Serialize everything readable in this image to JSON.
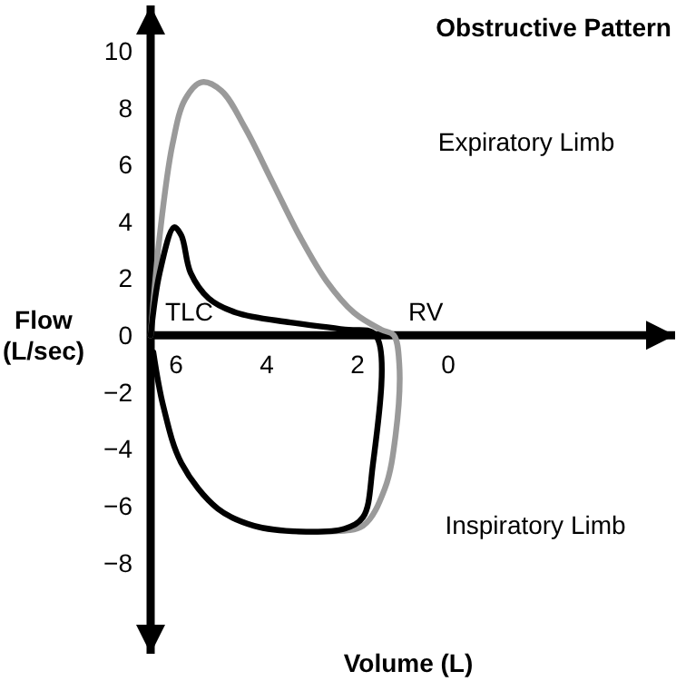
{
  "chart_data": {
    "type": "line",
    "title": "Obstructive Pattern",
    "xlabel": "Volume (L)",
    "ylabel": "Flow (L/sec)",
    "xlim": [
      6.56,
      -5
    ],
    "ylim": [
      -11.2,
      11.6
    ],
    "xticks": [
      6,
      4,
      2,
      0
    ],
    "yticks": [
      -8,
      -6,
      -4,
      -2,
      0,
      2,
      4,
      6,
      8,
      10
    ],
    "grid": false,
    "line_style": "solid",
    "series": [
      {
        "color": "#9a9a9a",
        "x": [
          6.56,
          6.36,
          6.08,
          5.8,
          5.44,
          5.0,
          4.48,
          3.88,
          3.28,
          2.68,
          2.08,
          1.48,
          1.2,
          1.08,
          1.16,
          1.4,
          1.88,
          2.68,
          3.3
        ],
        "values": [
          0,
          3.5,
          6.7,
          8.3,
          8.9,
          8.6,
          7.3,
          5.4,
          3.5,
          1.9,
          0.8,
          0.2,
          0,
          -1.0,
          -3.5,
          -5.4,
          -6.7,
          -6.9,
          -6.9
        ]
      },
      {
        "color": "#000000",
        "x": [
          6.56,
          6.36,
          6.04,
          5.88,
          5.68,
          5.28,
          4.68,
          3.48,
          2.28,
          1.6,
          1.68,
          1.88,
          2.28,
          3.28,
          4.28,
          5.08,
          5.88,
          6.28,
          6.5
        ],
        "values": [
          0,
          2.2,
          3.8,
          3.5,
          2.2,
          1.3,
          0.8,
          0.45,
          0.2,
          0,
          -4.8,
          -6.4,
          -6.8,
          -6.9,
          -6.7,
          -6.1,
          -4.5,
          -2.5,
          -0.6
        ]
      }
    ],
    "annotations": [
      "Expiratory Limb",
      "Inspiratory Limb",
      {
        "text": "TLC",
        "x": 6.56,
        "y": 0
      },
      {
        "text": "RV",
        "x": 1.2,
        "y": 0
      }
    ]
  }
}
